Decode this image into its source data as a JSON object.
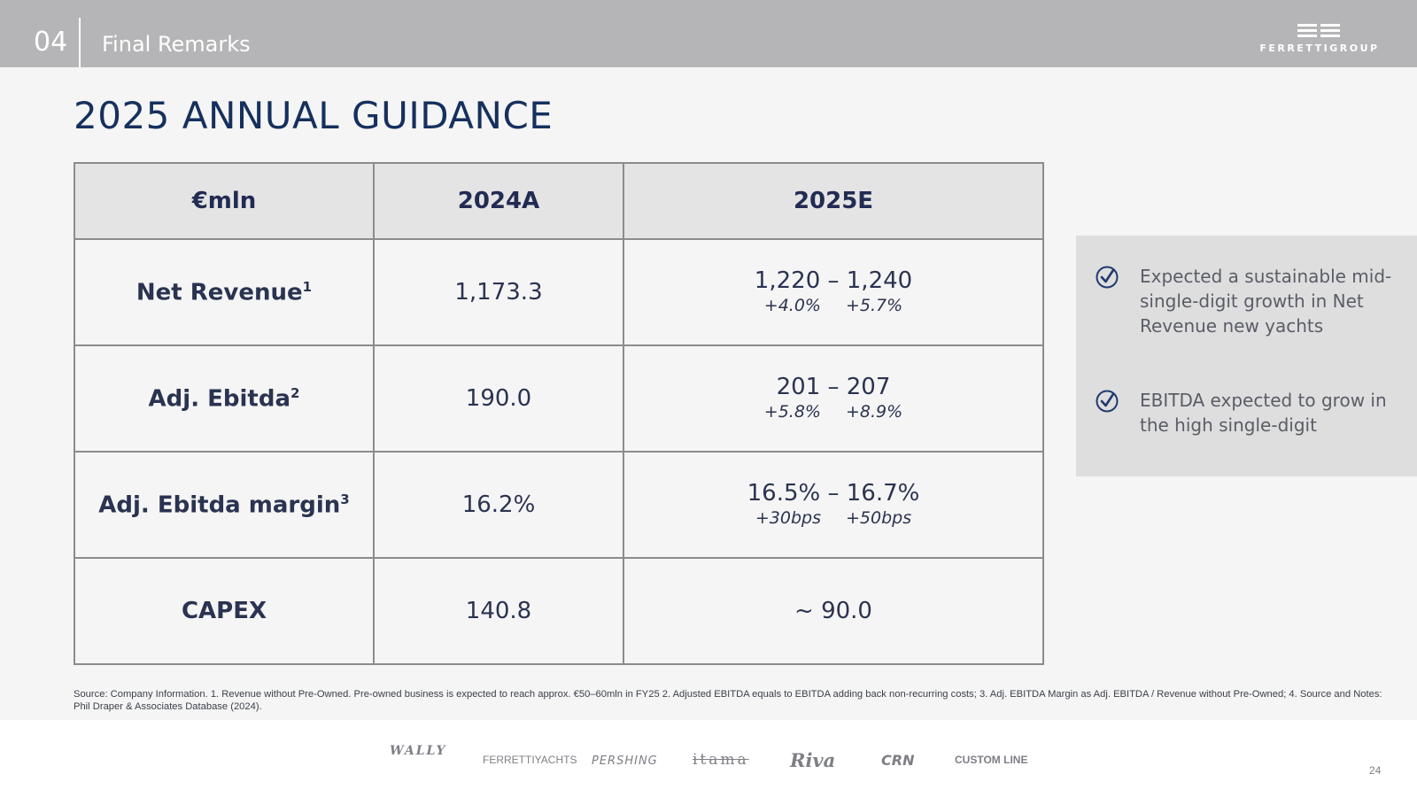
{
  "header": {
    "section_number": "04",
    "section_title": "Final Remarks",
    "logo_text": "FERRETTIGROUP"
  },
  "page_title": "2025 ANNUAL GUIDANCE",
  "table": {
    "headers": [
      "€mln",
      "2024A",
      "2025E"
    ],
    "rows": [
      {
        "label": "Net Revenue",
        "sup": "1",
        "actual": "1,173.3",
        "range": "1,220 – 1,240",
        "delta_low": "+4.0%",
        "delta_high": "+5.7%"
      },
      {
        "label": "Adj. Ebitda",
        "sup": "2",
        "actual": "190.0",
        "range": "201 – 207",
        "delta_low": "+5.8%",
        "delta_high": "+8.9%"
      },
      {
        "label": "Adj. Ebitda margin",
        "sup": "3",
        "actual": "16.2%",
        "range": "16.5% – 16.7%",
        "delta_low": "+30bps",
        "delta_high": "+50bps"
      },
      {
        "label": "CAPEX",
        "sup": "",
        "actual": "140.8",
        "range": "~ 90.0",
        "delta_low": "",
        "delta_high": ""
      }
    ]
  },
  "callout": {
    "bullets": [
      "Expected a sustainable mid-single-digit growth in Net Revenue new yachts",
      "EBITDA expected to grow in the high single-digit"
    ]
  },
  "footnote": "Source: Company Information. 1. Revenue without Pre-Owned. Pre-owned business is expected to reach approx. €50–60mln in FY25 2. Adjusted EBITDA equals to EBITDA adding back non-recurring costs; 3. Adj. EBITDA Margin as Adj. EBITDA / Revenue without Pre-Owned; 4. Source and Notes: Phil Draper & Associates Database (2024).",
  "footer": {
    "brands": [
      "WALLY",
      "FERRETTIYACHTS",
      "PERSHING",
      "itama",
      "Riva",
      "CRN",
      "CUSTOM LINE"
    ],
    "page_number": "24"
  }
}
